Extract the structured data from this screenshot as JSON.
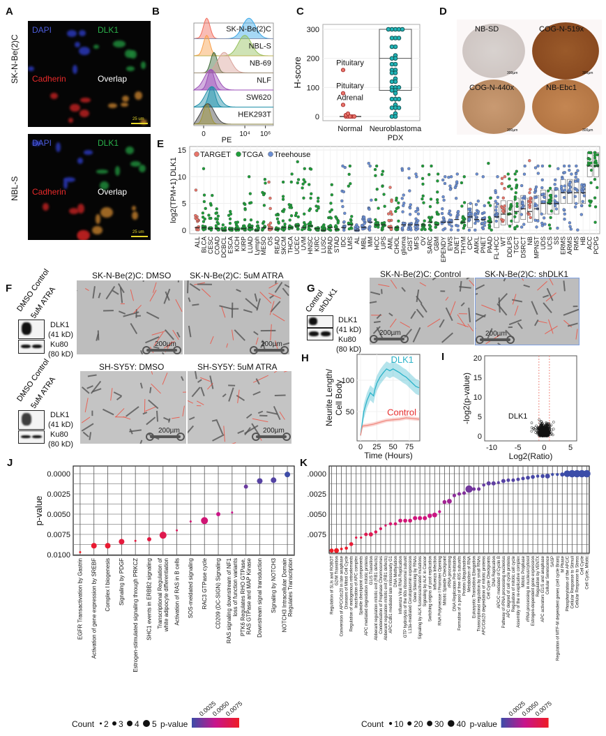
{
  "panels": {
    "A": "A",
    "B": "B",
    "C": "C",
    "D": "D",
    "E": "E",
    "F": "F",
    "G": "G",
    "H": "H",
    "I": "I",
    "J": "J",
    "K": "K"
  },
  "panel_a": {
    "rows": [
      {
        "cell_line": "SK-N-Be(2)C",
        "dapi": "DAPI",
        "dlk1": "DLK1",
        "cadherin": "Cadherin",
        "overlap": "Overlap",
        "scale": "25 um"
      },
      {
        "cell_line": "NBL-S",
        "dapi": "DAPI",
        "dlk1": "DLK1",
        "cadherin": "Cadherin",
        "overlap": "Overlap",
        "scale": "25 um"
      }
    ]
  },
  "panel_d": {
    "cores": [
      {
        "name": "NB-SD",
        "stain": "light",
        "scale": "300µm"
      },
      {
        "name": "COG-N-519x",
        "stain": "dark",
        "scale": "300µm"
      },
      {
        "name": "COG-N-440x",
        "stain": "medium",
        "scale": "300µm"
      },
      {
        "name": "NB-Ebc1",
        "stain": "medium",
        "scale": "300µm"
      }
    ]
  },
  "panel_f": {
    "blot1": {
      "lane1": "DMSO Control",
      "lane2": "5uM ATRA",
      "band1": "DLK1",
      "band1_kd": "(41 kD)",
      "band2": "Ku80",
      "band2_kd": "(80 kD)"
    },
    "blot2": {
      "lane1": "DMSO Control",
      "lane2": "5uM ATRA",
      "band1": "DLK1",
      "band1_kd": "(41 kD)",
      "band2": "Ku80",
      "band2_kd": "(80 kD)"
    },
    "images": [
      {
        "title": "SK-N-Be(2)C: DMSO",
        "scale": "200µm"
      },
      {
        "title": "SK-N-Be(2)C: 5uM ATRA",
        "scale": "200µm"
      },
      {
        "title": "SH-SY5Y: DMSO",
        "scale": "200µm"
      },
      {
        "title": "SH-SY5Y: 5uM ATRA",
        "scale": "200µm"
      }
    ]
  },
  "panel_g": {
    "blot": {
      "lane1": "Control",
      "lane2": "shDLK1",
      "band1": "DLK1",
      "band1_kd": "(41 kD)",
      "band2": "Ku80",
      "band2_kd": "(80 kD)"
    },
    "images": [
      {
        "title": "SK-N-Be(2)C: Control",
        "scale": "200µm"
      },
      {
        "title": "SK-N-Be(2)C: shDLK1",
        "scale": "200µm"
      }
    ]
  },
  "colors": {
    "target": "#e8756a",
    "tcga": "#1f9e3a",
    "treehouse": "#6b8fd4",
    "pval_low": "#3b4da8",
    "pval_mid": "#c8148c",
    "pval_high": "#ee1c25",
    "dlk1_line": "#2bb3c9",
    "control_line": "#f08a80",
    "up": "#f08a80",
    "down": "#7d9ee0"
  },
  "chart_data": [
    {
      "id": "B",
      "type": "histogram",
      "xlabel": "PE",
      "xticks": [
        "0",
        "10⁴",
        "10⁶"
      ],
      "log_x": true,
      "rows": [
        {
          "label": "SK-N-Be(2)C",
          "isotype_color": "#f26b5b",
          "stain_color": "#3aa8e8",
          "isotype_peak_log": 0.3,
          "stain_peak_log": 4.4
        },
        {
          "label": "NBL-S",
          "isotype_color": "#f8a04a",
          "stain_color": "#94c05a",
          "stain_peak_log": 4.0,
          "isotype_peak_log": 0.3
        },
        {
          "label": "NB-69",
          "isotype_color": "#3e6b3a",
          "stain_color": "#d9a19a",
          "isotype_peak_log": 1.0,
          "stain_peak_log": 2.0
        },
        {
          "label": "NLF",
          "isotype_color": "#9b4fb8",
          "stain_color": "#9b4fb8",
          "isotype_peak_log": 0.7,
          "stain_peak_log": 0.7
        },
        {
          "label": "SW620",
          "isotype_color": "#1f8fa8",
          "stain_color": "#1f8fa8",
          "isotype_peak_log": 0.8,
          "stain_peak_log": 0.8
        },
        {
          "label": "HEK293T",
          "isotype_color": "#e8d82a",
          "stain_color": "#444444",
          "isotype_peak_log": 0.3,
          "stain_peak_log": 0.4
        }
      ]
    },
    {
      "id": "C",
      "type": "box",
      "ylabel": "H-score",
      "ylim": [
        0,
        310
      ],
      "yticks": [
        0,
        100,
        200,
        300
      ],
      "categories": [
        "Normal",
        "Neuroblastoma\nPDX"
      ],
      "normal": {
        "values": [
          0,
          0,
          0,
          0,
          0,
          5,
          10,
          0,
          40,
          80,
          160
        ],
        "median": 0,
        "q1": 0,
        "q3": 0
      },
      "pdx": {
        "values": [
          300,
          300,
          300,
          300,
          300,
          270,
          270,
          270,
          240,
          240,
          210,
          200,
          200,
          180,
          180,
          160,
          160,
          150,
          150,
          130,
          120,
          120,
          100,
          100,
          100,
          90,
          90,
          80,
          60,
          60,
          60,
          40,
          30,
          30,
          30,
          10,
          0,
          0
        ],
        "median": 200,
        "q1": 90,
        "q3": 300
      },
      "annotations": [
        {
          "text": "Pituitary",
          "value": 160
        },
        {
          "text": "Pituitary",
          "value": 80
        },
        {
          "text": "Adrenal",
          "value": 40
        }
      ]
    },
    {
      "id": "E",
      "type": "scatter",
      "ylabel": "log2(TPM+1) DLK1",
      "ylim": [
        0,
        15
      ],
      "yticks": [
        0,
        5,
        10,
        15
      ],
      "legend": [
        "TARGET",
        "TCGA",
        "Treehouse"
      ],
      "legend_position": "top-left",
      "categories": [
        "ALL",
        "BLCA",
        "CESC",
        "COAD",
        "DCBCL",
        "ESCA",
        "KICH",
        "KIRP",
        "LUAD",
        "Lymph",
        "MESO",
        "OS",
        "READ",
        "SKCM",
        "THCA",
        "UCEC",
        "UVM",
        "HNSC",
        "KIRC",
        "LUSC",
        "PRAD",
        "STAD",
        "IDC",
        "LMS",
        "AL",
        "MBL",
        "MM",
        "HCC",
        "UPS",
        "AML",
        "CHOL",
        "glioma",
        "GIST",
        "MFS",
        "OV",
        "SARC",
        "GBM",
        "EPENDY",
        "EWS",
        "DNET",
        "THYM",
        "CPC",
        "AMKL",
        "PNET",
        "PAAD",
        "FL-HCC",
        "WT",
        "DDLPS",
        "TGCT",
        "DSRCT",
        "NB",
        "MPNST",
        "UDS",
        "UCS",
        "SS",
        "ERMS",
        "ARMS",
        "RMS",
        "HB",
        "ACC",
        "PCPG"
      ],
      "source": [
        "TARGET",
        "TCGA",
        "TCGA",
        "TCGA",
        "TCGA",
        "TCGA",
        "TCGA",
        "TCGA",
        "TCGA",
        "TCGA",
        "TCGA",
        "TARGET",
        "TCGA",
        "TCGA",
        "TCGA",
        "TCGA",
        "TCGA",
        "TCGA",
        "TCGA",
        "TCGA",
        "TCGA",
        "TCGA",
        "Treehouse",
        "TCGA",
        "Treehouse",
        "Treehouse",
        "Treehouse",
        "TCGA",
        "TCGA",
        "TARGET",
        "TCGA",
        "Treehouse",
        "Treehouse",
        "Treehouse",
        "TCGA",
        "TCGA",
        "TCGA",
        "Treehouse",
        "Treehouse",
        "Treehouse",
        "TCGA",
        "Treehouse",
        "Treehouse",
        "Treehouse",
        "TCGA",
        "Treehouse",
        "TARGET",
        "TCGA",
        "TCGA",
        "Treehouse",
        "TARGET",
        "Treehouse",
        "Treehouse",
        "TCGA",
        "Treehouse",
        "Treehouse",
        "Treehouse",
        "Treehouse",
        "Treehouse",
        "TCGA",
        "TCGA"
      ],
      "max": [
        7.5,
        11.5,
        6.5,
        4,
        1,
        3.5,
        1.5,
        5,
        10,
        1.5,
        9.5,
        9,
        3,
        9,
        10.5,
        12.8,
        11.5,
        11.5,
        6,
        1,
        8.5,
        2.5,
        12,
        12,
        1,
        2.5,
        12.5,
        12,
        11,
        8,
        6,
        11.5,
        11.5,
        10.5,
        12,
        12,
        10.5,
        10,
        10,
        10.5,
        10,
        5,
        10.5,
        10,
        12.5,
        10,
        10,
        10.5,
        11,
        12,
        13,
        12,
        12,
        12,
        11.5,
        12,
        12,
        12,
        8.5,
        14.5,
        14.5
      ],
      "median": [
        0.5,
        0.5,
        0.3,
        0.3,
        0,
        0.2,
        0.2,
        0.3,
        0.5,
        0,
        0.5,
        0.3,
        0.2,
        0.5,
        0.5,
        0.8,
        0.5,
        0.8,
        0.3,
        0,
        0.5,
        0.2,
        0.5,
        1,
        0,
        0.5,
        1.5,
        1,
        1,
        0.5,
        0.5,
        1,
        1,
        1,
        1,
        1.5,
        1,
        1.5,
        1.5,
        2,
        1.5,
        2.5,
        2,
        2,
        1.5,
        2.5,
        3,
        3,
        3.5,
        4,
        3.5,
        4,
        5,
        5,
        5,
        7,
        7,
        7,
        7,
        12,
        12
      ]
    },
    {
      "id": "H",
      "type": "line",
      "xlabel": "Time (Hours)",
      "ylabel": "Neurite Length/\nCell Body",
      "xlim": [
        0,
        92
      ],
      "ylim": [
        5,
        135
      ],
      "xticks": [
        0,
        25,
        50,
        75
      ],
      "yticks": [
        50,
        100
      ],
      "series": [
        {
          "name": "DLK1",
          "x": [
            0,
            5,
            10,
            15,
            20,
            22,
            25,
            30,
            35,
            40,
            45,
            50,
            55,
            60,
            65,
            70,
            75,
            80,
            85,
            90
          ],
          "y": [
            12,
            50,
            68,
            80,
            75,
            85,
            95,
            105,
            112,
            118,
            115,
            118,
            115,
            112,
            108,
            105,
            100,
            95,
            90,
            88
          ],
          "band": 12
        },
        {
          "name": "Control",
          "x": [
            0,
            3,
            10,
            20,
            30,
            40,
            50,
            60,
            70,
            80,
            90
          ],
          "y": [
            12,
            27,
            28,
            30,
            33,
            36,
            37,
            38,
            40,
            39,
            38
          ],
          "band": 3
        }
      ]
    },
    {
      "id": "I",
      "type": "scatter",
      "xlabel": "Log2(Ratio)",
      "ylabel": "-log2(p-value)",
      "xlim": [
        -11,
        7
      ],
      "ylim": [
        -1,
        21
      ],
      "xticks": [
        -10,
        -5,
        0,
        5
      ],
      "yticks": [
        0,
        5,
        10,
        15,
        20
      ],
      "fold_change_thresholds": [
        -1,
        1
      ],
      "annotation": {
        "text": "DLK1",
        "x": -5,
        "y": 4.5
      }
    },
    {
      "id": "J",
      "type": "scatter",
      "ylabel": "p-value",
      "ylim": [
        0.0102,
        -0.0004
      ],
      "yticks": [
        "0.0000",
        "0.0025",
        "0.0050",
        "0.0075",
        "0.0100"
      ],
      "categories": [
        "EGFR Transactivation by Gastrin",
        "Activation of gene expression by SREBF",
        "Complex I biogenesis",
        "Signaling by PDGF",
        "Estrogen-stimulated signaling  through PRKCZ",
        "SHC1 events in ERBB2 signaling",
        "Transcriptional Regulation of\nwhite adipocyte differentiation",
        "Activation of RAS in B cells",
        "SOS-meidated signaling",
        "RAC3 GTPase cycle",
        "CD209 (DC-SIGN) Signaling",
        "RAS signaling downstream of NF1\nloss of function variants",
        "PTK6 Regulates RHO GTPase,\nRAS GTPase and MAP Kinase",
        "Downstream signal transduction",
        "Signaling by NOTCH3",
        "NOTCH3 Intracellular Domain\nRegulates Transcription"
      ],
      "pvalue": [
        0.0097,
        0.0089,
        0.0089,
        0.0084,
        0.0083,
        0.0081,
        0.0076,
        0.007,
        0.0059,
        0.0058,
        0.005,
        0.0048,
        0.0016,
        0.0009,
        0.0008,
        0.0001
      ],
      "count": [
        2,
        4,
        4,
        4,
        2,
        3,
        5,
        2,
        2,
        5,
        3,
        2,
        3,
        4,
        4,
        4
      ],
      "legend": {
        "count_title": "Count",
        "count_values": [
          2,
          3,
          4,
          5
        ],
        "color_title": "p-value",
        "color_ticks": [
          "0.0025",
          "0.0050",
          "0.0075"
        ]
      }
    },
    {
      "id": "K",
      "type": "scatter",
      "ylabel": "",
      "ylim": [
        0.0102,
        -0.0004
      ],
      "yticks": [
        "0.0000",
        "0.0025",
        "0.0050",
        "0.0075"
      ],
      "categories": [
        "Regulation of SLIs and ROBOT",
        "G2/M Transition",
        "Conversion of APC/Cdc20 in late anaphase",
        "Diseases of Mitoti Cell Cycle",
        "Regulation of endogenous retroelements",
        "Inactivation of APC complex",
        "Spindle checkpoint components",
        "APC mediated degredation mitotic proteins",
        "G1/S Transition",
        "Abberant regulation mitotic exit (RB1 defects)",
        "Condensation of Prophase Chromosomes",
        "Abberant regulation mitotic exit (RB1 defects)",
        "APC:Cdh1 mediated late mitosis/early G1",
        "DNA Methylation",
        "Influenza Viral RNA Replication",
        "GTP hydrolysis of the 60s ribosomal subunit",
        "L13a-mediated Ceruloplasmin expression",
        "Gene Silencing by RNAs",
        "Signaling by ALK fusions/activated mutations",
        "Signaling by ALK in Cancer",
        "Switching origins of post-replication",
        "Influenza Infection",
        "RNA Polymerase I Promoter Opening",
        "Mitotic Spindle Checkpoint",
        "rRNA processing",
        "DNA Replication Pre-Initiation",
        "Formation of a pool of free 40S subunits",
        "Protein Ubiquitination",
        "Metabolism of RNA",
        "Eukaryotic Translation Elongation",
        "Transcriptional regulation by small RNAs",
        "APC/Cdc20 degredation of mitotic proteins",
        "Cell Cycle Checkpoints",
        "DNA Replication",
        "APC/C mediated of Cyclin B",
        "Pathway of rRNA processing nucleolus",
        "APC degred of cell cycle proteins",
        "Regulation of mitotic cell cycle",
        "Assembly of the re-replicative complex",
        "Mitotic Prophase",
        "rRNA processing in nucleus/cytosol",
        "Estrogen-dependent gene expression",
        "Regulation by VENTX",
        "APC activators G1/S and anaphase",
        "Cellular Senescence",
        "SASP",
        "Regulation of MTF-M dependent genes (cell cycle Brain)",
        "M Phase",
        "Phosphorylation of the APC/C",
        "Cellular Response to Stimuli",
        "Cellular Response to Stress",
        "Cell Cycle",
        "Cell Cycle, Mitotic"
      ],
      "pvalue": [
        0.0095,
        0.0095,
        0.0093,
        0.0092,
        0.0087,
        0.0079,
        0.0079,
        0.0075,
        0.0075,
        0.0072,
        0.0068,
        0.0064,
        0.0062,
        0.0062,
        0.0058,
        0.0058,
        0.0058,
        0.0055,
        0.0055,
        0.0055,
        0.0052,
        0.0051,
        0.0047,
        0.0035,
        0.0034,
        0.0027,
        0.0025,
        0.0024,
        0.0019,
        0.0019,
        0.0019,
        0.0014,
        0.0012,
        0.0012,
        0.0011,
        0.0009,
        0.0008,
        0.0008,
        0.0007,
        0.0006,
        0.0005,
        0.0004,
        0.0003,
        0.0003,
        0.0003,
        0.0001,
        0.0001,
        0.0001,
        0,
        0,
        0,
        0,
        0
      ],
      "count": [
        20,
        25,
        8,
        12,
        18,
        5,
        5,
        15,
        20,
        12,
        10,
        5,
        12,
        12,
        18,
        18,
        18,
        20,
        20,
        20,
        22,
        25,
        10,
        18,
        25,
        15,
        15,
        15,
        45,
        15,
        15,
        12,
        20,
        20,
        10,
        20,
        15,
        15,
        15,
        15,
        18,
        18,
        12,
        18,
        25,
        10,
        10,
        20,
        40,
        45,
        45,
        45,
        45
      ],
      "legend": {
        "count_title": "Count",
        "count_values": [
          10,
          20,
          30,
          40
        ],
        "color_title": "p-value",
        "color_ticks": [
          "0.0025",
          "0.0050",
          "0.0075"
        ]
      }
    }
  ]
}
